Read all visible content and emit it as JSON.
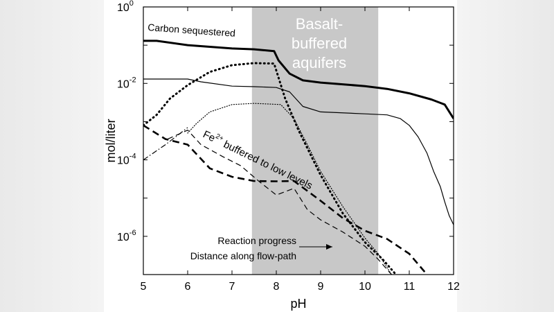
{
  "chart_data": {
    "type": "line",
    "xlabel": "pH",
    "ylabel": "mol/liter",
    "xlim": [
      5,
      12
    ],
    "ylim": [
      1e-07,
      1
    ],
    "yscale": "log",
    "grid": false,
    "x_ticks": [
      "5",
      "6",
      "7",
      "8",
      "9",
      "10",
      "11",
      "12"
    ],
    "y_ticks": [
      {
        "value": 1,
        "base": "10",
        "exp": "0"
      },
      {
        "value": 0.01,
        "base": "10",
        "exp": "-2"
      },
      {
        "value": 0.0001,
        "base": "10",
        "exp": "-4"
      },
      {
        "value": 1e-06,
        "base": "10",
        "exp": "-6"
      }
    ],
    "shaded_region": {
      "x0": 7.45,
      "x1": 10.3,
      "color": "#c8c8c8",
      "label_lines": [
        "Basalt-",
        "buffered",
        "aquifers"
      ]
    },
    "annotations": {
      "carbon": "Carbon sequestered",
      "fe_main": "Fe",
      "fe_sup": "2+",
      "fe_rest": " buffered to low levels",
      "reaction": "Reaction progress",
      "distance": "Distance along flow-path"
    },
    "series": [
      {
        "style": "thick-solid",
        "points": [
          [
            5,
            0.13
          ],
          [
            5.3,
            0.13
          ],
          [
            6,
            0.1
          ],
          [
            7,
            0.082
          ],
          [
            7.5,
            0.078
          ],
          [
            7.95,
            0.07
          ],
          [
            8.05,
            0.04
          ],
          [
            8.3,
            0.018
          ],
          [
            8.6,
            0.012
          ],
          [
            9,
            0.0105
          ],
          [
            10,
            0.0085
          ],
          [
            10.5,
            0.0072
          ],
          [
            11,
            0.0055
          ],
          [
            11.5,
            0.0038
          ],
          [
            11.8,
            0.0028
          ],
          [
            12,
            0.0012
          ]
        ]
      },
      {
        "style": "thin-solid",
        "points": [
          [
            5,
            0.013
          ],
          [
            6,
            0.013
          ],
          [
            6.3,
            0.011
          ],
          [
            7,
            0.0085
          ],
          [
            7.5,
            0.0082
          ],
          [
            8,
            0.0078
          ],
          [
            8.3,
            0.006
          ],
          [
            8.6,
            0.0025
          ],
          [
            9,
            0.0018
          ],
          [
            10,
            0.0016
          ],
          [
            10.5,
            0.0015
          ],
          [
            10.8,
            0.0012
          ],
          [
            11,
            0.0008
          ],
          [
            11.2,
            0.0004
          ],
          [
            11.4,
            0.00015
          ],
          [
            11.55,
            5e-05
          ],
          [
            11.7,
            2e-05
          ],
          [
            11.8,
            8e-06
          ],
          [
            11.9,
            3.5e-06
          ],
          [
            12,
            2e-06
          ]
        ]
      },
      {
        "style": "thick-dotted",
        "points": [
          [
            5,
            0.0008
          ],
          [
            5.3,
            0.0015
          ],
          [
            5.6,
            0.004
          ],
          [
            6,
            0.009
          ],
          [
            6.5,
            0.02
          ],
          [
            7,
            0.03
          ],
          [
            7.5,
            0.034
          ],
          [
            7.95,
            0.033
          ],
          [
            8.2,
            0.004
          ],
          [
            8.5,
            0.0006
          ],
          [
            9,
            4e-05
          ],
          [
            9.5,
            4e-06
          ],
          [
            10,
            7e-07
          ],
          [
            10.4,
            2.5e-07
          ],
          [
            10.7,
            1e-07
          ]
        ]
      },
      {
        "style": "thin-dotted",
        "points": [
          [
            6,
            0.0005
          ],
          [
            6.2,
            0.0009
          ],
          [
            6.5,
            0.0018
          ],
          [
            7,
            0.0028
          ],
          [
            7.5,
            0.003
          ],
          [
            8.1,
            0.0028
          ],
          [
            8.4,
            0.0012
          ],
          [
            8.7,
            0.00025
          ],
          [
            9,
            5e-05
          ],
          [
            9.5,
            6e-06
          ],
          [
            10,
            9e-07
          ],
          [
            10.3,
            3.5e-07
          ],
          [
            10.6,
            1e-07
          ]
        ]
      },
      {
        "style": "thick-dashed",
        "points": [
          [
            5,
            0.0008
          ],
          [
            5.5,
            0.00035
          ],
          [
            6,
            0.00025
          ],
          [
            6.5,
            6e-05
          ],
          [
            7,
            3.6e-05
          ],
          [
            7.5,
            2.8e-05
          ],
          [
            8,
            2.75e-05
          ],
          [
            8.4,
            2.8e-05
          ],
          [
            9,
            8.5e-06
          ],
          [
            9.5,
            3e-06
          ],
          [
            10,
            1.4e-06
          ],
          [
            10.5,
            8.5e-07
          ],
          [
            11,
            3.5e-07
          ],
          [
            11.4,
            1e-07
          ]
        ]
      },
      {
        "style": "thin-dashed",
        "points": [
          [
            5.55,
            0.00035
          ],
          [
            6,
            0.0006
          ],
          [
            6.3,
            0.00025
          ],
          [
            6.8,
            0.00012
          ],
          [
            7.2,
            7e-05
          ],
          [
            7.6,
            2.8e-05
          ],
          [
            8,
            1.2e-05
          ],
          [
            8.4,
            1.8e-05
          ],
          [
            8.7,
            5e-06
          ],
          [
            9,
            2.7e-06
          ],
          [
            9.5,
            1.3e-06
          ],
          [
            10,
            5.5e-07
          ],
          [
            10.3,
            2.5e-07
          ],
          [
            10.6,
            1e-07
          ]
        ]
      },
      {
        "style": "dash-dot",
        "points": [
          [
            5,
            0.0001
          ],
          [
            5.5,
            0.00025
          ],
          [
            6,
            0.0007
          ]
        ]
      }
    ]
  }
}
